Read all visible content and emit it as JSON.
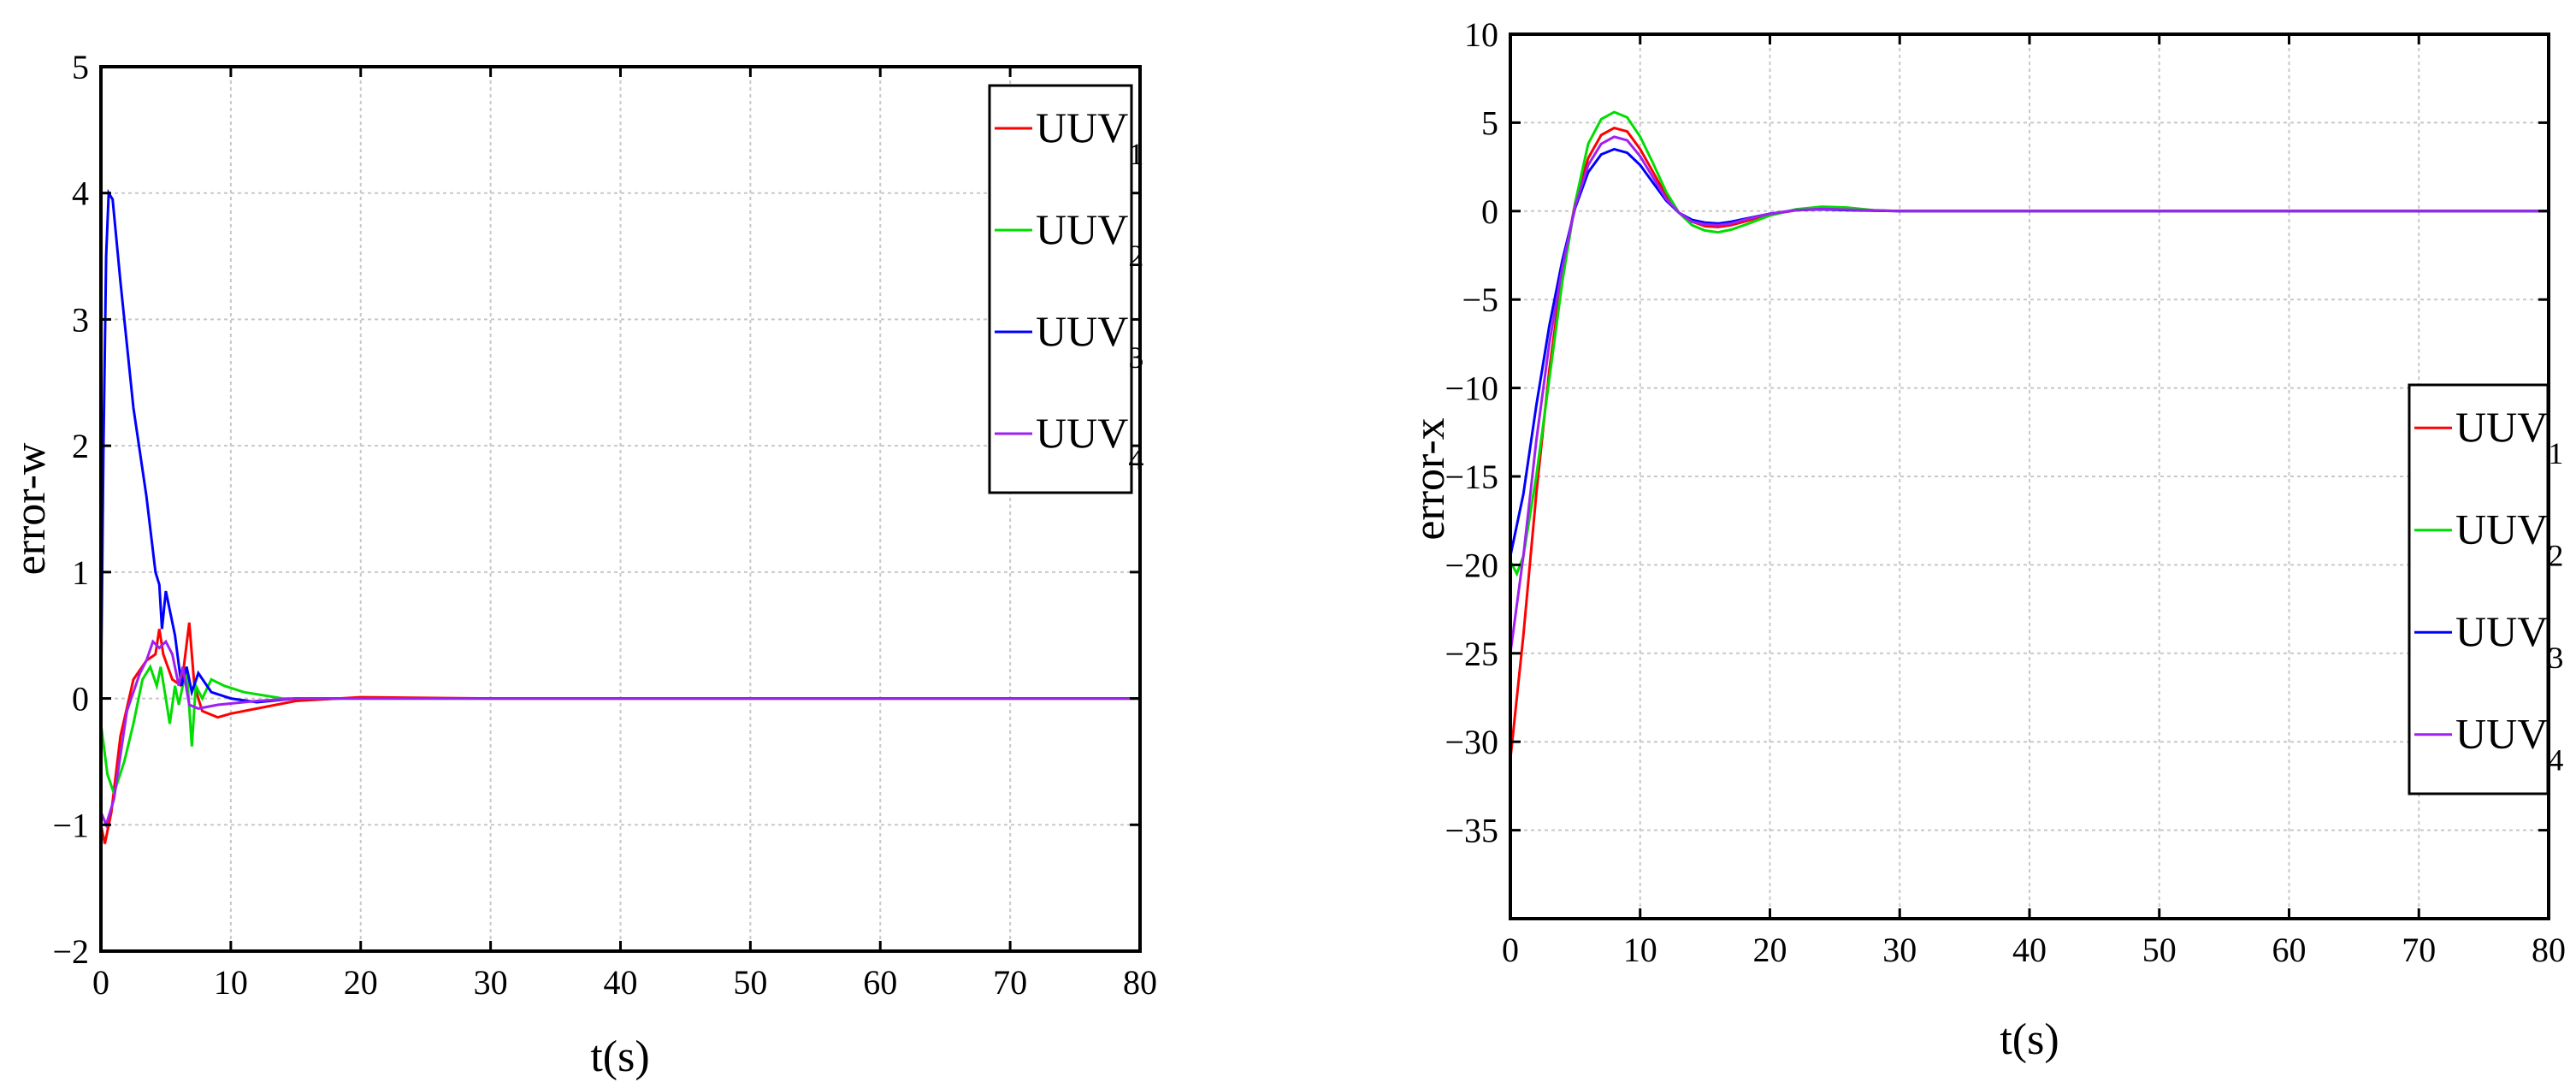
{
  "chart_data": [
    {
      "type": "line",
      "title": "",
      "xlabel": "t(s)",
      "ylabel": "error-w",
      "xlim": [
        0,
        80
      ],
      "ylim": [
        -2,
        5
      ],
      "xticks": [
        0,
        10,
        20,
        30,
        40,
        50,
        60,
        70,
        80
      ],
      "yticks": [
        -2,
        -1,
        0,
        1,
        2,
        3,
        4,
        5
      ],
      "grid": true,
      "legend_position": "top-right",
      "series": [
        {
          "name": "UUV",
          "subscript": "1",
          "color": "#ff0000",
          "points": [
            [
              0,
              -1.0
            ],
            [
              0.3,
              -1.15
            ],
            [
              0.8,
              -0.9
            ],
            [
              1.5,
              -0.3
            ],
            [
              2.5,
              0.15
            ],
            [
              3.5,
              0.3
            ],
            [
              4.2,
              0.35
            ],
            [
              4.5,
              0.55
            ],
            [
              4.8,
              0.35
            ],
            [
              5.5,
              0.15
            ],
            [
              6.2,
              0.1
            ],
            [
              6.8,
              0.6
            ],
            [
              7.2,
              0.1
            ],
            [
              7.8,
              -0.1
            ],
            [
              9,
              -0.15
            ],
            [
              10,
              -0.12
            ],
            [
              12,
              -0.08
            ],
            [
              15,
              -0.02
            ],
            [
              20,
              0.01
            ],
            [
              30,
              0.0
            ],
            [
              80,
              0.0
            ]
          ]
        },
        {
          "name": "UUV",
          "subscript": "2",
          "color": "#00dd00",
          "points": [
            [
              0,
              -0.2
            ],
            [
              0.5,
              -0.6
            ],
            [
              1,
              -0.75
            ],
            [
              1.8,
              -0.5
            ],
            [
              2.5,
              -0.2
            ],
            [
              3.2,
              0.15
            ],
            [
              3.8,
              0.25
            ],
            [
              4.3,
              0.1
            ],
            [
              4.6,
              0.25
            ],
            [
              5.0,
              0.0
            ],
            [
              5.3,
              -0.2
            ],
            [
              5.7,
              0.1
            ],
            [
              6.0,
              -0.05
            ],
            [
              6.6,
              0.25
            ],
            [
              7.0,
              -0.38
            ],
            [
              7.3,
              0.1
            ],
            [
              7.8,
              0.0
            ],
            [
              8.5,
              0.15
            ],
            [
              9.5,
              0.1
            ],
            [
              11,
              0.05
            ],
            [
              14,
              0.0
            ],
            [
              20,
              0.0
            ],
            [
              80,
              0.0
            ]
          ]
        },
        {
          "name": "UUV",
          "subscript": "3",
          "color": "#0000ff",
          "points": [
            [
              0,
              0.0
            ],
            [
              0.2,
              2.0
            ],
            [
              0.4,
              3.5
            ],
            [
              0.6,
              4.0
            ],
            [
              0.9,
              3.95
            ],
            [
              1.5,
              3.3
            ],
            [
              2.5,
              2.3
            ],
            [
              3.5,
              1.6
            ],
            [
              4.2,
              1.0
            ],
            [
              4.5,
              0.9
            ],
            [
              4.7,
              0.55
            ],
            [
              5.0,
              0.85
            ],
            [
              5.3,
              0.7
            ],
            [
              5.7,
              0.5
            ],
            [
              6.2,
              0.1
            ],
            [
              6.6,
              0.25
            ],
            [
              7.0,
              0.05
            ],
            [
              7.5,
              0.2
            ],
            [
              8.5,
              0.05
            ],
            [
              10,
              0.0
            ],
            [
              12,
              -0.03
            ],
            [
              15,
              0.0
            ],
            [
              80,
              0.0
            ]
          ]
        },
        {
          "name": "UUV",
          "subscript": "4",
          "color": "#a020f0",
          "points": [
            [
              0,
              -0.9
            ],
            [
              0.4,
              -1.0
            ],
            [
              1.0,
              -0.8
            ],
            [
              2.0,
              -0.1
            ],
            [
              3.0,
              0.2
            ],
            [
              3.5,
              0.3
            ],
            [
              4.0,
              0.45
            ],
            [
              4.5,
              0.4
            ],
            [
              5.0,
              0.45
            ],
            [
              5.5,
              0.35
            ],
            [
              6.0,
              0.1
            ],
            [
              6.3,
              0.25
            ],
            [
              6.8,
              -0.05
            ],
            [
              7.5,
              -0.08
            ],
            [
              9,
              -0.05
            ],
            [
              12,
              -0.02
            ],
            [
              15,
              0.0
            ],
            [
              80,
              0.0
            ]
          ]
        }
      ]
    },
    {
      "type": "line",
      "title": "",
      "xlabel": "t(s)",
      "ylabel": "error-x",
      "xlim": [
        0,
        80
      ],
      "ylim": [
        -40,
        10
      ],
      "xticks": [
        0,
        10,
        20,
        30,
        40,
        50,
        60,
        70,
        80
      ],
      "yticks": [
        -35,
        -30,
        -25,
        -20,
        -15,
        -10,
        -5,
        0,
        5,
        10
      ],
      "grid": true,
      "legend_position": "right",
      "series": [
        {
          "name": "UUV",
          "subscript": "1",
          "color": "#ff0000",
          "points": [
            [
              0,
              -31
            ],
            [
              1,
              -24
            ],
            [
              2,
              -16
            ],
            [
              3,
              -9
            ],
            [
              4,
              -3.5
            ],
            [
              5,
              0.5
            ],
            [
              6,
              3
            ],
            [
              7,
              4.3
            ],
            [
              8,
              4.7
            ],
            [
              9,
              4.5
            ],
            [
              10,
              3.5
            ],
            [
              11,
              2.2
            ],
            [
              12,
              0.9
            ],
            [
              13,
              -0.1
            ],
            [
              14,
              -0.6
            ],
            [
              15,
              -0.85
            ],
            [
              16,
              -0.9
            ],
            [
              17,
              -0.8
            ],
            [
              18,
              -0.6
            ],
            [
              20,
              -0.2
            ],
            [
              22,
              0.05
            ],
            [
              24,
              0.15
            ],
            [
              26,
              0.1
            ],
            [
              28,
              0.03
            ],
            [
              30,
              0.0
            ],
            [
              80,
              0.0
            ]
          ]
        },
        {
          "name": "UUV",
          "subscript": "2",
          "color": "#00dd00",
          "points": [
            [
              0,
              -19.8
            ],
            [
              0.5,
              -20.5
            ],
            [
              1,
              -19.5
            ],
            [
              2,
              -15
            ],
            [
              3,
              -9.5
            ],
            [
              4,
              -4
            ],
            [
              5,
              0.5
            ],
            [
              6,
              3.8
            ],
            [
              7,
              5.2
            ],
            [
              8,
              5.6
            ],
            [
              9,
              5.3
            ],
            [
              10,
              4.2
            ],
            [
              11,
              2.7
            ],
            [
              12,
              1.1
            ],
            [
              13,
              -0.1
            ],
            [
              14,
              -0.8
            ],
            [
              15,
              -1.1
            ],
            [
              16,
              -1.2
            ],
            [
              17,
              -1.05
            ],
            [
              18,
              -0.8
            ],
            [
              20,
              -0.25
            ],
            [
              22,
              0.1
            ],
            [
              24,
              0.25
            ],
            [
              26,
              0.2
            ],
            [
              28,
              0.05
            ],
            [
              30,
              0.0
            ],
            [
              80,
              0.0
            ]
          ]
        },
        {
          "name": "UUV",
          "subscript": "3",
          "color": "#0000ff",
          "points": [
            [
              0,
              -19.5
            ],
            [
              1,
              -16
            ],
            [
              2,
              -11
            ],
            [
              3,
              -6.5
            ],
            [
              4,
              -2.8
            ],
            [
              5,
              0.2
            ],
            [
              6,
              2.2
            ],
            [
              7,
              3.2
            ],
            [
              8,
              3.5
            ],
            [
              9,
              3.3
            ],
            [
              10,
              2.6
            ],
            [
              11,
              1.6
            ],
            [
              12,
              0.6
            ],
            [
              13,
              -0.1
            ],
            [
              14,
              -0.5
            ],
            [
              15,
              -0.65
            ],
            [
              16,
              -0.7
            ],
            [
              17,
              -0.6
            ],
            [
              18,
              -0.45
            ],
            [
              20,
              -0.15
            ],
            [
              22,
              0.05
            ],
            [
              24,
              0.1
            ],
            [
              26,
              0.05
            ],
            [
              30,
              0.0
            ],
            [
              80,
              0.0
            ]
          ]
        },
        {
          "name": "UUV",
          "subscript": "4",
          "color": "#a020f0",
          "points": [
            [
              0,
              -25
            ],
            [
              1,
              -19.5
            ],
            [
              2,
              -13
            ],
            [
              3,
              -7.5
            ],
            [
              4,
              -3.2
            ],
            [
              5,
              0.3
            ],
            [
              6,
              2.6
            ],
            [
              7,
              3.8
            ],
            [
              8,
              4.2
            ],
            [
              9,
              4.0
            ],
            [
              10,
              3.1
            ],
            [
              11,
              1.9
            ],
            [
              12,
              0.7
            ],
            [
              13,
              -0.1
            ],
            [
              14,
              -0.6
            ],
            [
              15,
              -0.75
            ],
            [
              16,
              -0.8
            ],
            [
              17,
              -0.7
            ],
            [
              18,
              -0.5
            ],
            [
              20,
              -0.15
            ],
            [
              22,
              0.05
            ],
            [
              24,
              0.12
            ],
            [
              26,
              0.08
            ],
            [
              30,
              0.0
            ],
            [
              80,
              0.0
            ]
          ]
        }
      ]
    }
  ]
}
